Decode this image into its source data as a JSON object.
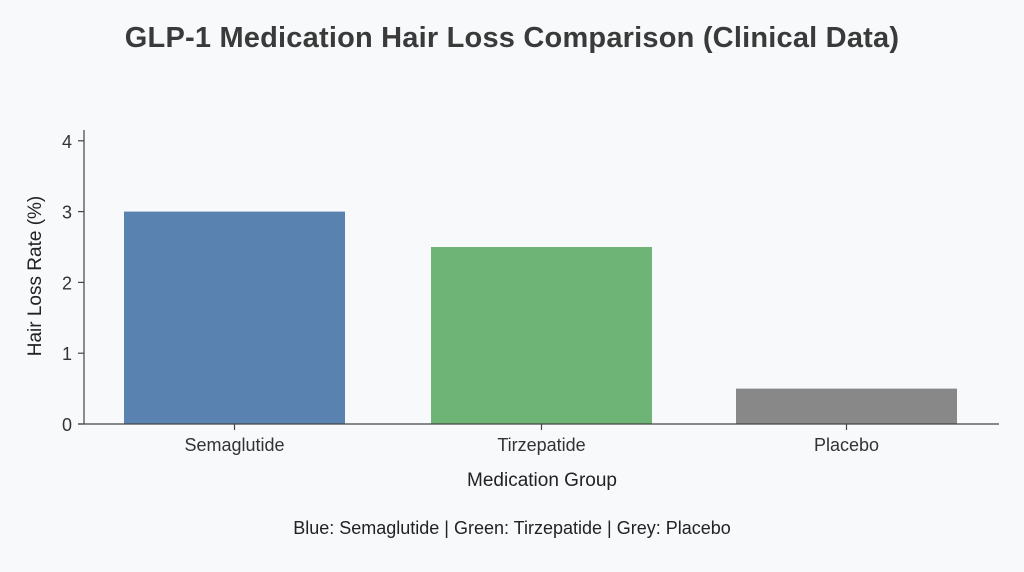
{
  "title": "GLP-1 Medication Hair Loss Comparison (Clinical Data)",
  "caption": "Blue: Semaglutide | Green: Tirzepatide | Grey: Placebo",
  "colors": {
    "background": "#f7f9fb",
    "axis": "#444444",
    "semaglutide": "#5a82b0",
    "tirzepatide": "#6db476",
    "placebo": "#888888"
  },
  "chart_data": {
    "type": "bar",
    "title": "GLP-1 Medication Hair Loss Comparison (Clinical Data)",
    "xlabel": "Medication Group",
    "ylabel": "Hair Loss Rate (%)",
    "categories": [
      "Semaglutide",
      "Tirzepatide",
      "Placebo"
    ],
    "values": [
      3.0,
      2.5,
      0.5
    ],
    "bar_colors": [
      "#5a82b0",
      "#6db476",
      "#888888"
    ],
    "ylim": [
      0,
      4.15
    ],
    "yticks": [
      0,
      1,
      2,
      3,
      4
    ],
    "grid": false,
    "legend": "none (caption below chart describes colors)",
    "annotations": [
      "Blue: Semaglutide | Green: Tirzepatide | Grey: Placebo"
    ]
  }
}
